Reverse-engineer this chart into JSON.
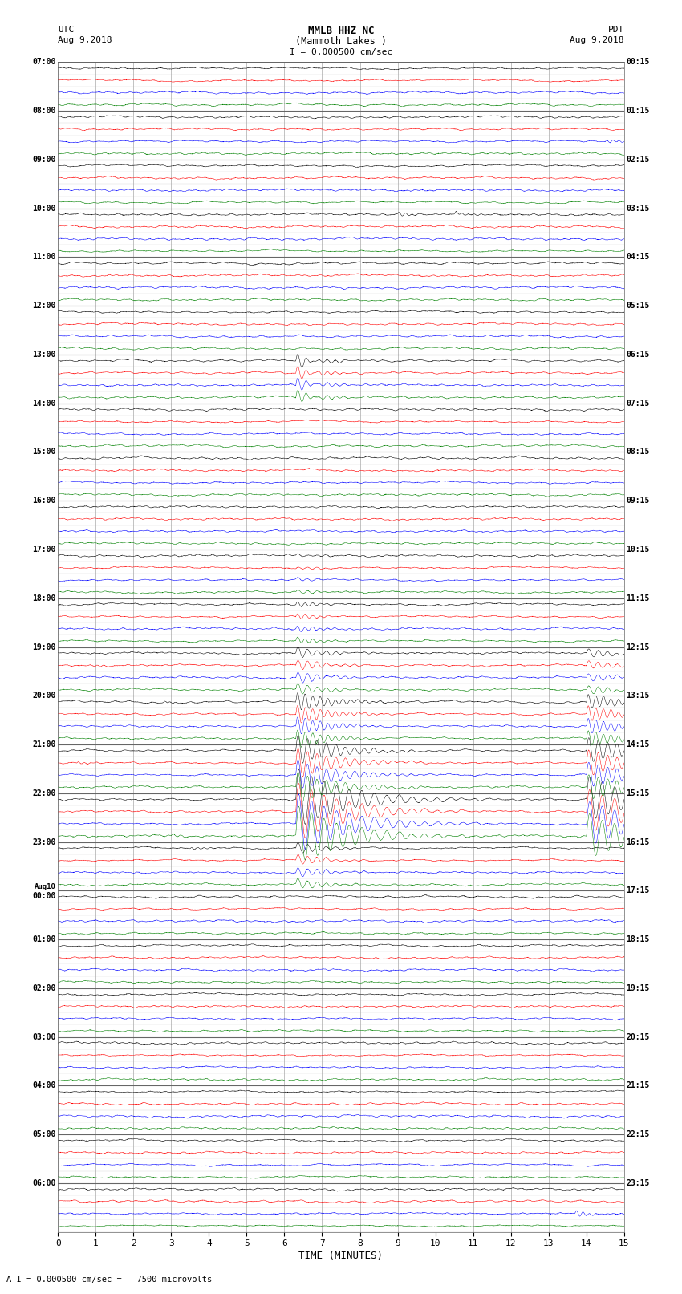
{
  "title_line1": "MMLB HHZ NC",
  "title_line2": "(Mammoth Lakes )",
  "scale_label": "I = 0.000500 cm/sec",
  "bottom_label": "A I = 0.000500 cm/sec =   7500 microvolts",
  "left_header_line1": "UTC",
  "left_header_line2": "Aug 9,2018",
  "right_header_line1": "PDT",
  "right_header_line2": "Aug 9,2018",
  "xlabel": "TIME (MINUTES)",
  "left_times": [
    "07:00",
    "08:00",
    "09:00",
    "10:00",
    "11:00",
    "12:00",
    "13:00",
    "14:00",
    "15:00",
    "16:00",
    "17:00",
    "18:00",
    "19:00",
    "20:00",
    "21:00",
    "22:00",
    "23:00",
    "Aug10\n00:00",
    "01:00",
    "02:00",
    "03:00",
    "04:00",
    "05:00",
    "06:00"
  ],
  "right_times": [
    "00:15",
    "01:15",
    "02:15",
    "03:15",
    "04:15",
    "05:15",
    "06:15",
    "07:15",
    "08:15",
    "09:15",
    "10:15",
    "11:15",
    "12:15",
    "13:15",
    "14:15",
    "15:15",
    "16:15",
    "17:15",
    "18:15",
    "19:15",
    "20:15",
    "21:15",
    "22:15",
    "23:15"
  ],
  "n_rows": 24,
  "n_traces_per_row": 4,
  "trace_colors": [
    "black",
    "red",
    "blue",
    "green"
  ],
  "bg_color": "#ffffff",
  "plot_bg_color": "#ffffff",
  "grid_color": "#aaaaaa",
  "fig_width": 8.5,
  "fig_height": 16.13,
  "dpi": 100,
  "minutes": 15,
  "samples": 3000
}
